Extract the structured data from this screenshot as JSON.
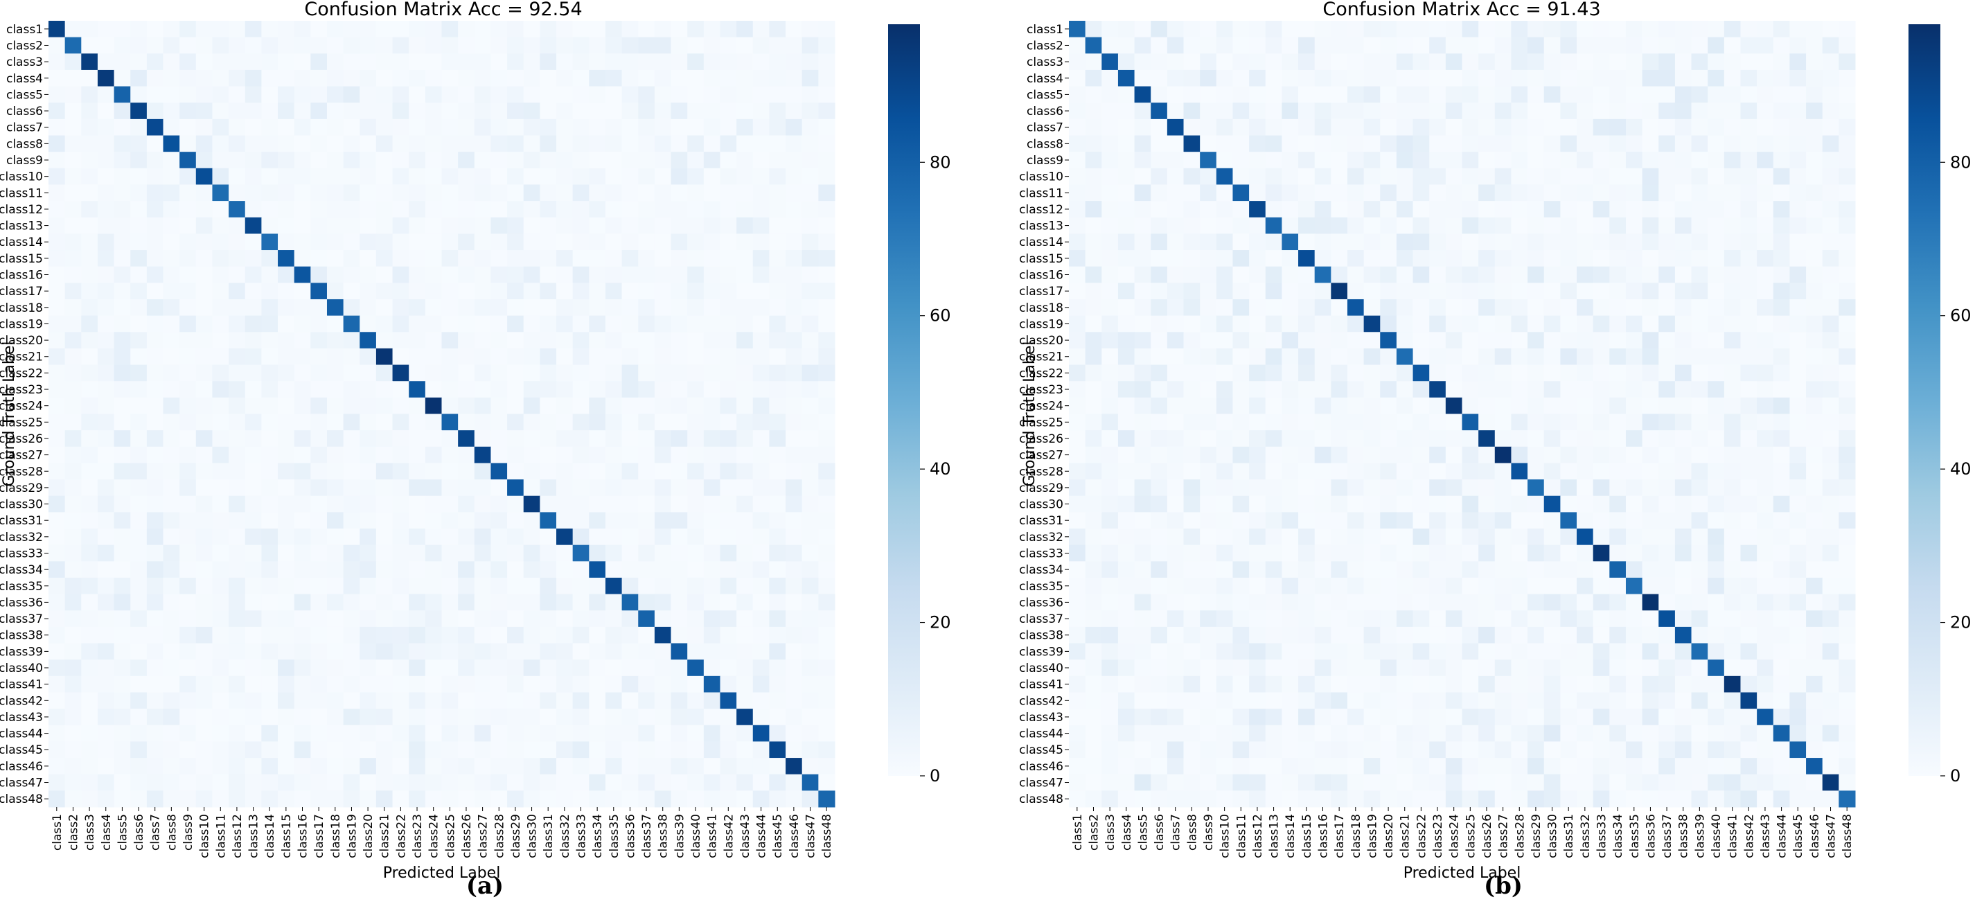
{
  "colors": {
    "low": "#f7fbff",
    "mid": "#6baed6",
    "high": "#08306b"
  },
  "chart_data": [
    {
      "type": "heatmap",
      "panel_label": "(a)",
      "title": "Confusion Matrix Acc = 92.54",
      "xlabel": "Predicted Label",
      "ylabel": "Ground Truth Label",
      "num_classes": 48,
      "class_prefix": "class",
      "diagonal_range": [
        75,
        98
      ],
      "off_diagonal_range": [
        0,
        10
      ],
      "colorbar": {
        "min": 0,
        "max": 98,
        "ticks": [
          0,
          20,
          40,
          60,
          80
        ]
      }
    },
    {
      "type": "heatmap",
      "panel_label": "(b)",
      "title": "Confusion Matrix Acc = 91.43",
      "xlabel": "Predicted Label",
      "ylabel": "Ground Truth Label",
      "num_classes": 48,
      "class_prefix": "class",
      "diagonal_range": [
        74,
        98
      ],
      "off_diagonal_range": [
        0,
        12
      ],
      "colorbar": {
        "min": 0,
        "max": 98,
        "ticks": [
          0,
          20,
          40,
          60,
          80
        ]
      }
    }
  ]
}
